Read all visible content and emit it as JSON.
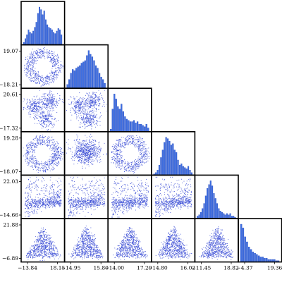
{
  "chart_data": {
    "type": "corner-scatter-matrix",
    "n_variables": 6,
    "grid": false,
    "title": "",
    "colors": {
      "points": "#3f51d6",
      "bars": "#3f6fe0",
      "bar_edge": "#1b3fb8",
      "frame": "#000000"
    },
    "y_tick_labels": [
      null,
      [
        "19.07",
        "−18.21"
      ],
      [
        "20.61",
        "−17.32"
      ],
      [
        "19.28",
        "−18.07"
      ],
      [
        "22.03",
        "−14.66"
      ],
      [
        "21.88",
        "−6.89"
      ]
    ],
    "x_tick_labels": [
      [
        "−13.84",
        "18.15"
      ],
      [
        "−14.95",
        "15.80"
      ],
      [
        "−14.00",
        "17.29"
      ],
      [
        "−14.80",
        "16.02"
      ],
      [
        "−11.45",
        "18.82"
      ],
      [
        "−4.37",
        "19.36"
      ]
    ],
    "histograms": [
      {
        "variable": 1,
        "counts": [
          2,
          5,
          8,
          12,
          10,
          9,
          11,
          14,
          18,
          25,
          30,
          28,
          24,
          27,
          20,
          16,
          14,
          13,
          12,
          10,
          9,
          11,
          13,
          12,
          8
        ]
      },
      {
        "variable": 2,
        "counts": [
          3,
          7,
          12,
          15,
          14,
          16,
          17,
          18,
          20,
          21,
          22,
          26,
          30,
          27,
          25,
          22,
          18,
          16,
          12,
          9,
          7,
          4
        ]
      },
      {
        "variable": 3,
        "counts": [
          2,
          18,
          30,
          26,
          20,
          18,
          22,
          16,
          12,
          10,
          9,
          8,
          8,
          9,
          7,
          8,
          6,
          6,
          5,
          4,
          6,
          3
        ]
      },
      {
        "variable": 4,
        "counts": [
          1,
          2,
          4,
          8,
          14,
          20,
          26,
          30,
          29,
          27,
          24,
          25,
          20,
          18,
          12,
          8,
          9,
          7,
          6,
          5,
          7,
          4,
          2
        ]
      },
      {
        "variable": 5,
        "counts": [
          2,
          3,
          5,
          8,
          12,
          18,
          24,
          27,
          30,
          26,
          20,
          16,
          12,
          8,
          6,
          5,
          4,
          3,
          4,
          3,
          4,
          2,
          2,
          1
        ]
      },
      {
        "variable": 6,
        "counts": [
          30,
          27,
          20,
          16,
          12,
          10,
          8,
          7,
          6,
          5,
          4,
          4,
          3,
          3,
          2,
          2,
          2,
          2,
          1,
          1
        ]
      }
    ],
    "scatter_panels": [
      {
        "row": 2,
        "col": 1,
        "shape": "ring"
      },
      {
        "row": 3,
        "col": 1,
        "shape": "lobes"
      },
      {
        "row": 3,
        "col": 2,
        "shape": "lobes"
      },
      {
        "row": 4,
        "col": 1,
        "shape": "ring"
      },
      {
        "row": 4,
        "col": 2,
        "shape": "blob"
      },
      {
        "row": 4,
        "col": 3,
        "shape": "ring"
      },
      {
        "row": 5,
        "col": 1,
        "shape": "band"
      },
      {
        "row": 5,
        "col": 2,
        "shape": "band"
      },
      {
        "row": 5,
        "col": 3,
        "shape": "band"
      },
      {
        "row": 5,
        "col": 4,
        "shape": "band"
      },
      {
        "row": 6,
        "col": 1,
        "shape": "triangle"
      },
      {
        "row": 6,
        "col": 2,
        "shape": "triangle"
      },
      {
        "row": 6,
        "col": 3,
        "shape": "triangle"
      },
      {
        "row": 6,
        "col": 4,
        "shape": "triangle"
      },
      {
        "row": 6,
        "col": 5,
        "shape": "triangle"
      }
    ]
  }
}
